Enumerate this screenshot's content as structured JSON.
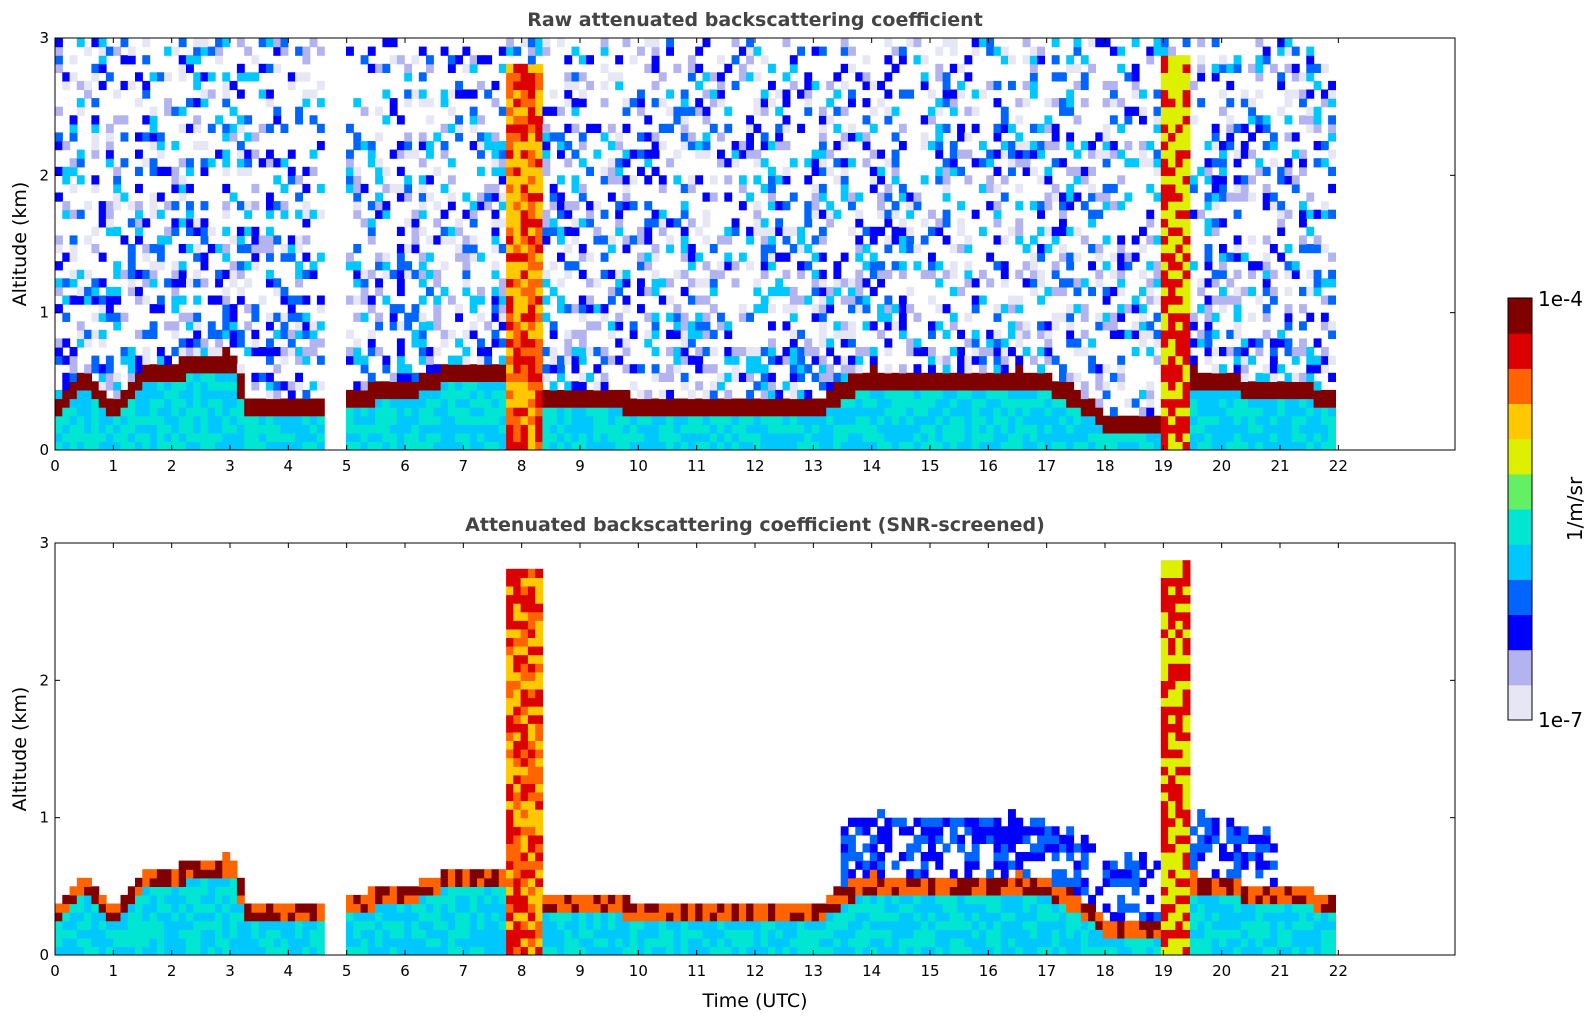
{
  "colors": {
    "background": "#ffffff",
    "colormap": [
      "#e6e6f5",
      "#b3b3f0",
      "#0000ff",
      "#0064ff",
      "#00c8ff",
      "#00e6d2",
      "#64f064",
      "#dcf000",
      "#ffc800",
      "#ff6400",
      "#dc0000",
      "#800000"
    ],
    "axis": "#000000",
    "title": "#444444"
  },
  "chart_data": [
    {
      "type": "heatmap",
      "title": "Raw attenuated backscattering coefficient",
      "xlabel": "",
      "ylabel": "Altitude (km)",
      "xlim": [
        0,
        24
      ],
      "ylim": [
        0,
        3
      ],
      "xticks": [
        "0",
        "1",
        "2",
        "3",
        "4",
        "5",
        "6",
        "7",
        "8",
        "9",
        "10",
        "11",
        "12",
        "13",
        "14",
        "15",
        "16",
        "17",
        "18",
        "19",
        "20",
        "21",
        "22"
      ],
      "yticks": [
        "0",
        "1",
        "2",
        "3"
      ],
      "data_gaps_utc": [
        [
          4.62,
          5.05
        ]
      ],
      "data_end_utc": 21.95,
      "layers": [
        {
          "name": "boundary-layer-top",
          "x": [
            0,
            0.5,
            1,
            1.5,
            2,
            2.5,
            3,
            3.3,
            4,
            4.6,
            5.05,
            6,
            7,
            7.7,
            8,
            9,
            10,
            11,
            12,
            13,
            13.5,
            14,
            14.5,
            15,
            15.5,
            16,
            16.5,
            17,
            17.5,
            18,
            19,
            19.5,
            20,
            21,
            22
          ],
          "top_km": [
            0.3,
            0.55,
            0.3,
            0.58,
            0.6,
            0.62,
            0.68,
            0.35,
            0.32,
            0.3,
            0.4,
            0.45,
            0.6,
            0.6,
            0.4,
            0.4,
            0.35,
            0.3,
            0.3,
            0.3,
            0.45,
            0.55,
            0.5,
            0.5,
            0.5,
            0.5,
            0.55,
            0.5,
            0.4,
            0.22,
            0.22,
            0.55,
            0.5,
            0.45,
            0.4
          ]
        },
        {
          "name": "intense-precipitation-column",
          "x_start": 7.7,
          "x_end": 8.3,
          "top_km": 2.8
        },
        {
          "name": "cirrus-19h",
          "x_start": 19.0,
          "x_end": 19.5,
          "top_km": 2.9
        }
      ]
    },
    {
      "type": "heatmap",
      "title": "Attenuated backscattering coefficient (SNR-screened)",
      "xlabel": "Time (UTC)",
      "ylabel": "Altitude (km)",
      "xlim": [
        0,
        24
      ],
      "ylim": [
        0,
        3
      ],
      "xticks": [
        "0",
        "1",
        "2",
        "3",
        "4",
        "5",
        "6",
        "7",
        "8",
        "9",
        "10",
        "11",
        "12",
        "13",
        "14",
        "15",
        "16",
        "17",
        "18",
        "19",
        "20",
        "21",
        "22"
      ],
      "yticks": [
        "0",
        "1",
        "2",
        "3"
      ],
      "data_gaps_utc": [
        [
          4.62,
          5.05
        ]
      ],
      "data_end_utc": 21.95
    }
  ],
  "colorbar": {
    "label": "1/m/sr",
    "max_label": "1e-4",
    "min_label": "1e-7"
  }
}
